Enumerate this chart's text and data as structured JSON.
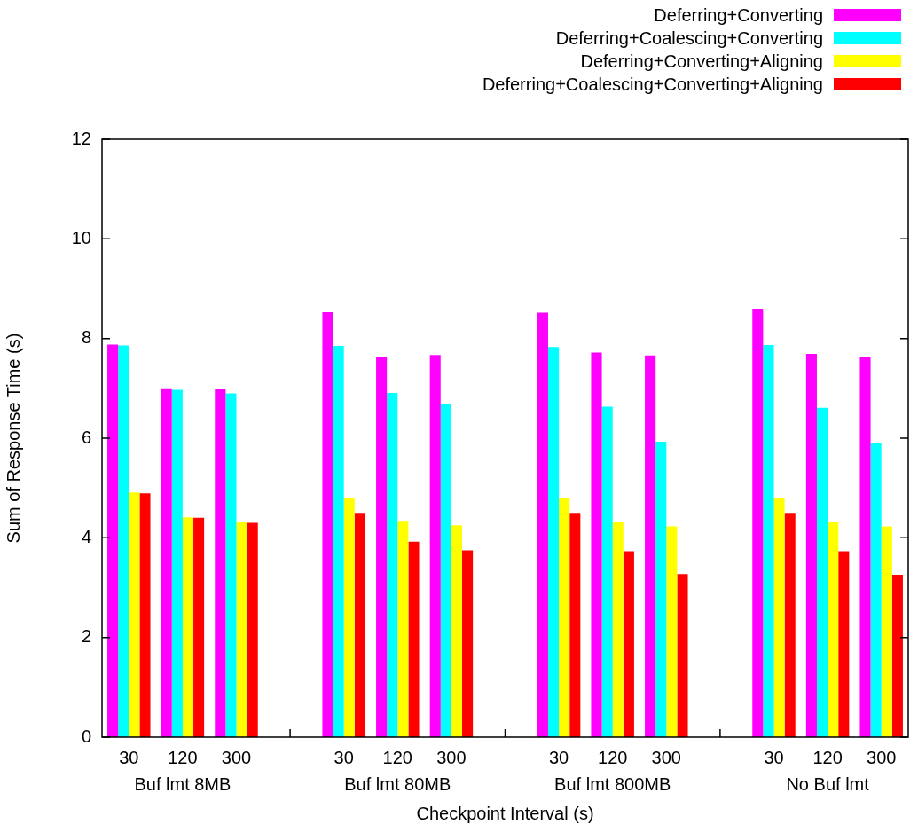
{
  "chart_data": {
    "type": "bar",
    "xlabel": "Checkpoint Interval (s)",
    "ylabel": "Sum of Response Time (s)",
    "categories": [
      "30",
      "120",
      "300",
      null,
      "30",
      "120",
      "300",
      null,
      "30",
      "120",
      "300",
      null,
      "30",
      "120",
      "300"
    ],
    "series": [
      {
        "name": "Deferring+Converting",
        "color": "#ff00ff",
        "values": [
          7.88,
          7.0,
          6.98,
          null,
          8.53,
          7.64,
          7.67,
          null,
          8.52,
          7.72,
          7.66,
          null,
          8.6,
          7.69,
          7.64
        ]
      },
      {
        "name": "Deferring+Coalescing+Converting",
        "color": "#00ffff",
        "values": [
          7.86,
          6.97,
          6.9,
          null,
          7.85,
          6.91,
          6.68,
          null,
          7.83,
          6.63,
          5.93,
          null,
          7.87,
          6.61,
          5.9
        ]
      },
      {
        "name": "Deferring+Converting+Aligning",
        "color": "#ffff00",
        "values": [
          4.91,
          4.41,
          4.32,
          null,
          4.8,
          4.34,
          4.25,
          null,
          4.8,
          4.32,
          4.23,
          null,
          4.8,
          4.32,
          4.23
        ]
      },
      {
        "name": "Deferring+Coalescing+Converting+Aligning",
        "color": "#ff0000",
        "values": [
          4.89,
          4.4,
          4.3,
          null,
          4.5,
          3.92,
          3.75,
          null,
          4.5,
          3.73,
          3.27,
          null,
          4.5,
          3.73,
          3.26
        ]
      }
    ],
    "ylim": [
      0,
      12
    ],
    "yticks": [
      0,
      2,
      4,
      6,
      8,
      10,
      12
    ],
    "grid": false,
    "legend": "top right",
    "annotations": [
      "Buf lmt 8MB",
      "Buf lmt 80MB",
      "Buf lmt 800MB",
      "No Buf lmt"
    ]
  }
}
